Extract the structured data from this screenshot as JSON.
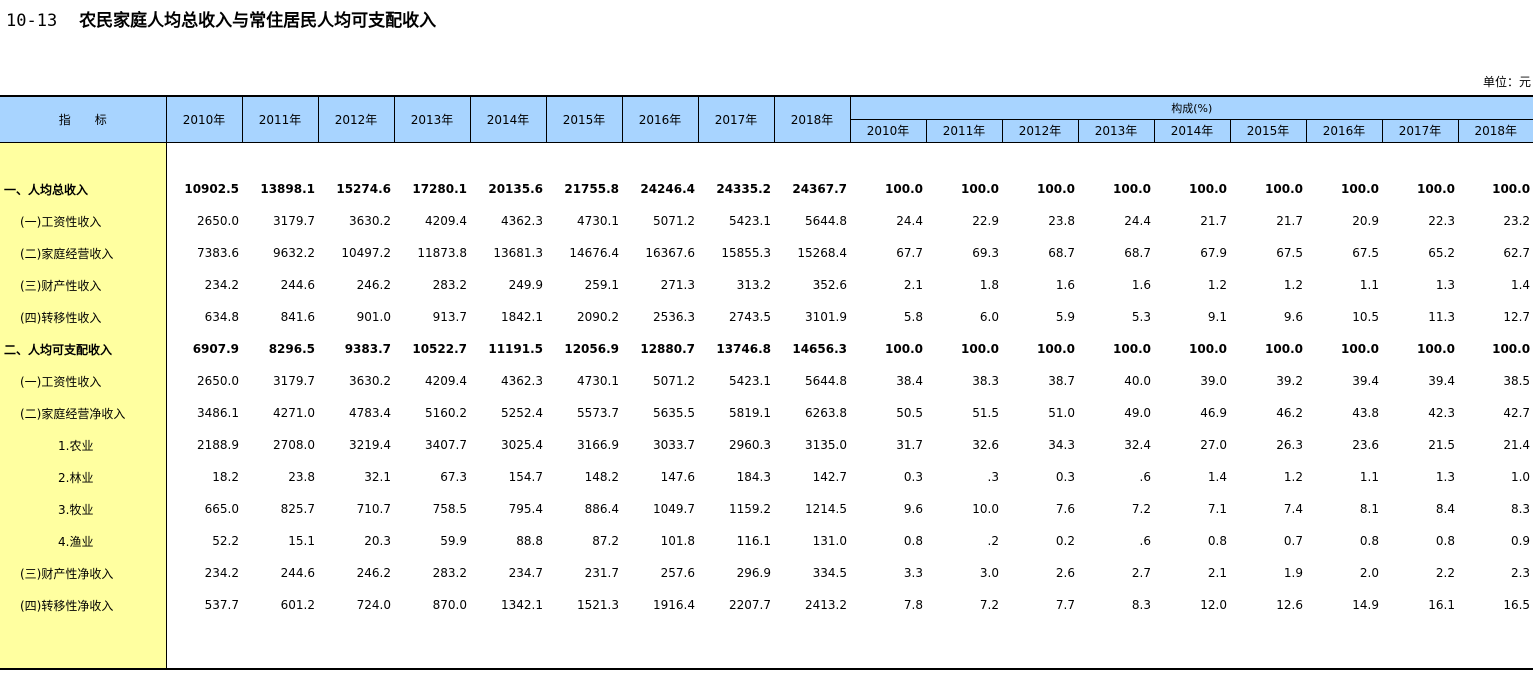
{
  "title_no": "10-13",
  "title": "农民家庭人均总收入与常住居民人均可支配收入",
  "unit": "单位：元",
  "header": {
    "indicator": "指　　标",
    "years": [
      "2010年",
      "2011年",
      "2012年",
      "2013年",
      "2014年",
      "2015年",
      "2016年",
      "2017年",
      "2018年"
    ],
    "composition": "构成(%)"
  },
  "rows": [
    {
      "label": "一、人均总收入",
      "bold": true,
      "indent": 0,
      "values": [
        "10902.5",
        "13898.1",
        "15274.6",
        "17280.1",
        "20135.6",
        "21755.8",
        "24246.4",
        "24335.2",
        "24367.7"
      ],
      "pct": [
        "100.0",
        "100.0",
        "100.0",
        "100.0",
        "100.0",
        "100.0",
        "100.0",
        "100.0",
        "100.0"
      ]
    },
    {
      "label": "(一)工资性收入",
      "bold": false,
      "indent": 1,
      "values": [
        "2650.0",
        "3179.7",
        "3630.2",
        "4209.4",
        "4362.3",
        "4730.1",
        "5071.2",
        "5423.1",
        "5644.8"
      ],
      "pct": [
        "24.4",
        "22.9",
        "23.8",
        "24.4",
        "21.7",
        "21.7",
        "20.9",
        "22.3",
        "23.2"
      ]
    },
    {
      "label": "(二)家庭经营收入",
      "bold": false,
      "indent": 1,
      "values": [
        "7383.6",
        "9632.2",
        "10497.2",
        "11873.8",
        "13681.3",
        "14676.4",
        "16367.6",
        "15855.3",
        "15268.4"
      ],
      "pct": [
        "67.7",
        "69.3",
        "68.7",
        "68.7",
        "67.9",
        "67.5",
        "67.5",
        "65.2",
        "62.7"
      ]
    },
    {
      "label": "(三)财产性收入",
      "bold": false,
      "indent": 1,
      "values": [
        "234.2",
        "244.6",
        "246.2",
        "283.2",
        "249.9",
        "259.1",
        "271.3",
        "313.2",
        "352.6"
      ],
      "pct": [
        "2.1",
        "1.8",
        "1.6",
        "1.6",
        "1.2",
        "1.2",
        "1.1",
        "1.3",
        "1.4"
      ]
    },
    {
      "label": "(四)转移性收入",
      "bold": false,
      "indent": 1,
      "values": [
        "634.8",
        "841.6",
        "901.0",
        "913.7",
        "1842.1",
        "2090.2",
        "2536.3",
        "2743.5",
        "3101.9"
      ],
      "pct": [
        "5.8",
        "6.0",
        "5.9",
        "5.3",
        "9.1",
        "9.6",
        "10.5",
        "11.3",
        "12.7"
      ]
    },
    {
      "label": "二、人均可支配收入",
      "bold": true,
      "indent": 0,
      "values": [
        "6907.9",
        "8296.5",
        "9383.7",
        "10522.7",
        "11191.5",
        "12056.9",
        "12880.7",
        "13746.8",
        "14656.3"
      ],
      "pct": [
        "100.0",
        "100.0",
        "100.0",
        "100.0",
        "100.0",
        "100.0",
        "100.0",
        "100.0",
        "100.0"
      ]
    },
    {
      "label": "(一)工资性收入",
      "bold": false,
      "indent": 1,
      "values": [
        "2650.0",
        "3179.7",
        "3630.2",
        "4209.4",
        "4362.3",
        "4730.1",
        "5071.2",
        "5423.1",
        "5644.8"
      ],
      "pct": [
        "38.4",
        "38.3",
        "38.7",
        "40.0",
        "39.0",
        "39.2",
        "39.4",
        "39.4",
        "38.5"
      ]
    },
    {
      "label": "(二)家庭经营净收入",
      "bold": false,
      "indent": 1,
      "values": [
        "3486.1",
        "4271.0",
        "4783.4",
        "5160.2",
        "5252.4",
        "5573.7",
        "5635.5",
        "5819.1",
        "6263.8"
      ],
      "pct": [
        "50.5",
        "51.5",
        "51.0",
        "49.0",
        "46.9",
        "46.2",
        "43.8",
        "42.3",
        "42.7"
      ]
    },
    {
      "label": "1.农业",
      "bold": false,
      "indent": 2,
      "values": [
        "2188.9",
        "2708.0",
        "3219.4",
        "3407.7",
        "3025.4",
        "3166.9",
        "3033.7",
        "2960.3",
        "3135.0"
      ],
      "pct": [
        "31.7",
        "32.6",
        "34.3",
        "32.4",
        "27.0",
        "26.3",
        "23.6",
        "21.5",
        "21.4"
      ]
    },
    {
      "label": "2.林业",
      "bold": false,
      "indent": 2,
      "values": [
        "18.2",
        "23.8",
        "32.1",
        "67.3",
        "154.7",
        "148.2",
        "147.6",
        "184.3",
        "142.7"
      ],
      "pct": [
        "0.3",
        ".3",
        "0.3",
        ".6",
        "1.4",
        "1.2",
        "1.1",
        "1.3",
        "1.0"
      ]
    },
    {
      "label": "3.牧业",
      "bold": false,
      "indent": 2,
      "values": [
        "665.0",
        "825.7",
        "710.7",
        "758.5",
        "795.4",
        "886.4",
        "1049.7",
        "1159.2",
        "1214.5"
      ],
      "pct": [
        "9.6",
        "10.0",
        "7.6",
        "7.2",
        "7.1",
        "7.4",
        "8.1",
        "8.4",
        "8.3"
      ]
    },
    {
      "label": "4.渔业",
      "bold": false,
      "indent": 2,
      "values": [
        "52.2",
        "15.1",
        "20.3",
        "59.9",
        "88.8",
        "87.2",
        "101.8",
        "116.1",
        "131.0"
      ],
      "pct": [
        "0.8",
        ".2",
        "0.2",
        ".6",
        "0.8",
        "0.7",
        "0.8",
        "0.8",
        "0.9"
      ]
    },
    {
      "label": "(三)财产性净收入",
      "bold": false,
      "indent": 1,
      "values": [
        "234.2",
        "244.6",
        "246.2",
        "283.2",
        "234.7",
        "231.7",
        "257.6",
        "296.9",
        "334.5"
      ],
      "pct": [
        "3.3",
        "3.0",
        "2.6",
        "2.7",
        "2.1",
        "1.9",
        "2.0",
        "2.2",
        "2.3"
      ]
    },
    {
      "label": "(四)转移性净收入",
      "bold": false,
      "indent": 1,
      "values": [
        "537.7",
        "601.2",
        "724.0",
        "870.0",
        "1342.1",
        "1521.3",
        "1916.4",
        "2207.7",
        "2413.2"
      ],
      "pct": [
        "7.8",
        "7.2",
        "7.7",
        "8.3",
        "12.0",
        "12.6",
        "14.9",
        "16.1",
        "16.5"
      ]
    }
  ]
}
